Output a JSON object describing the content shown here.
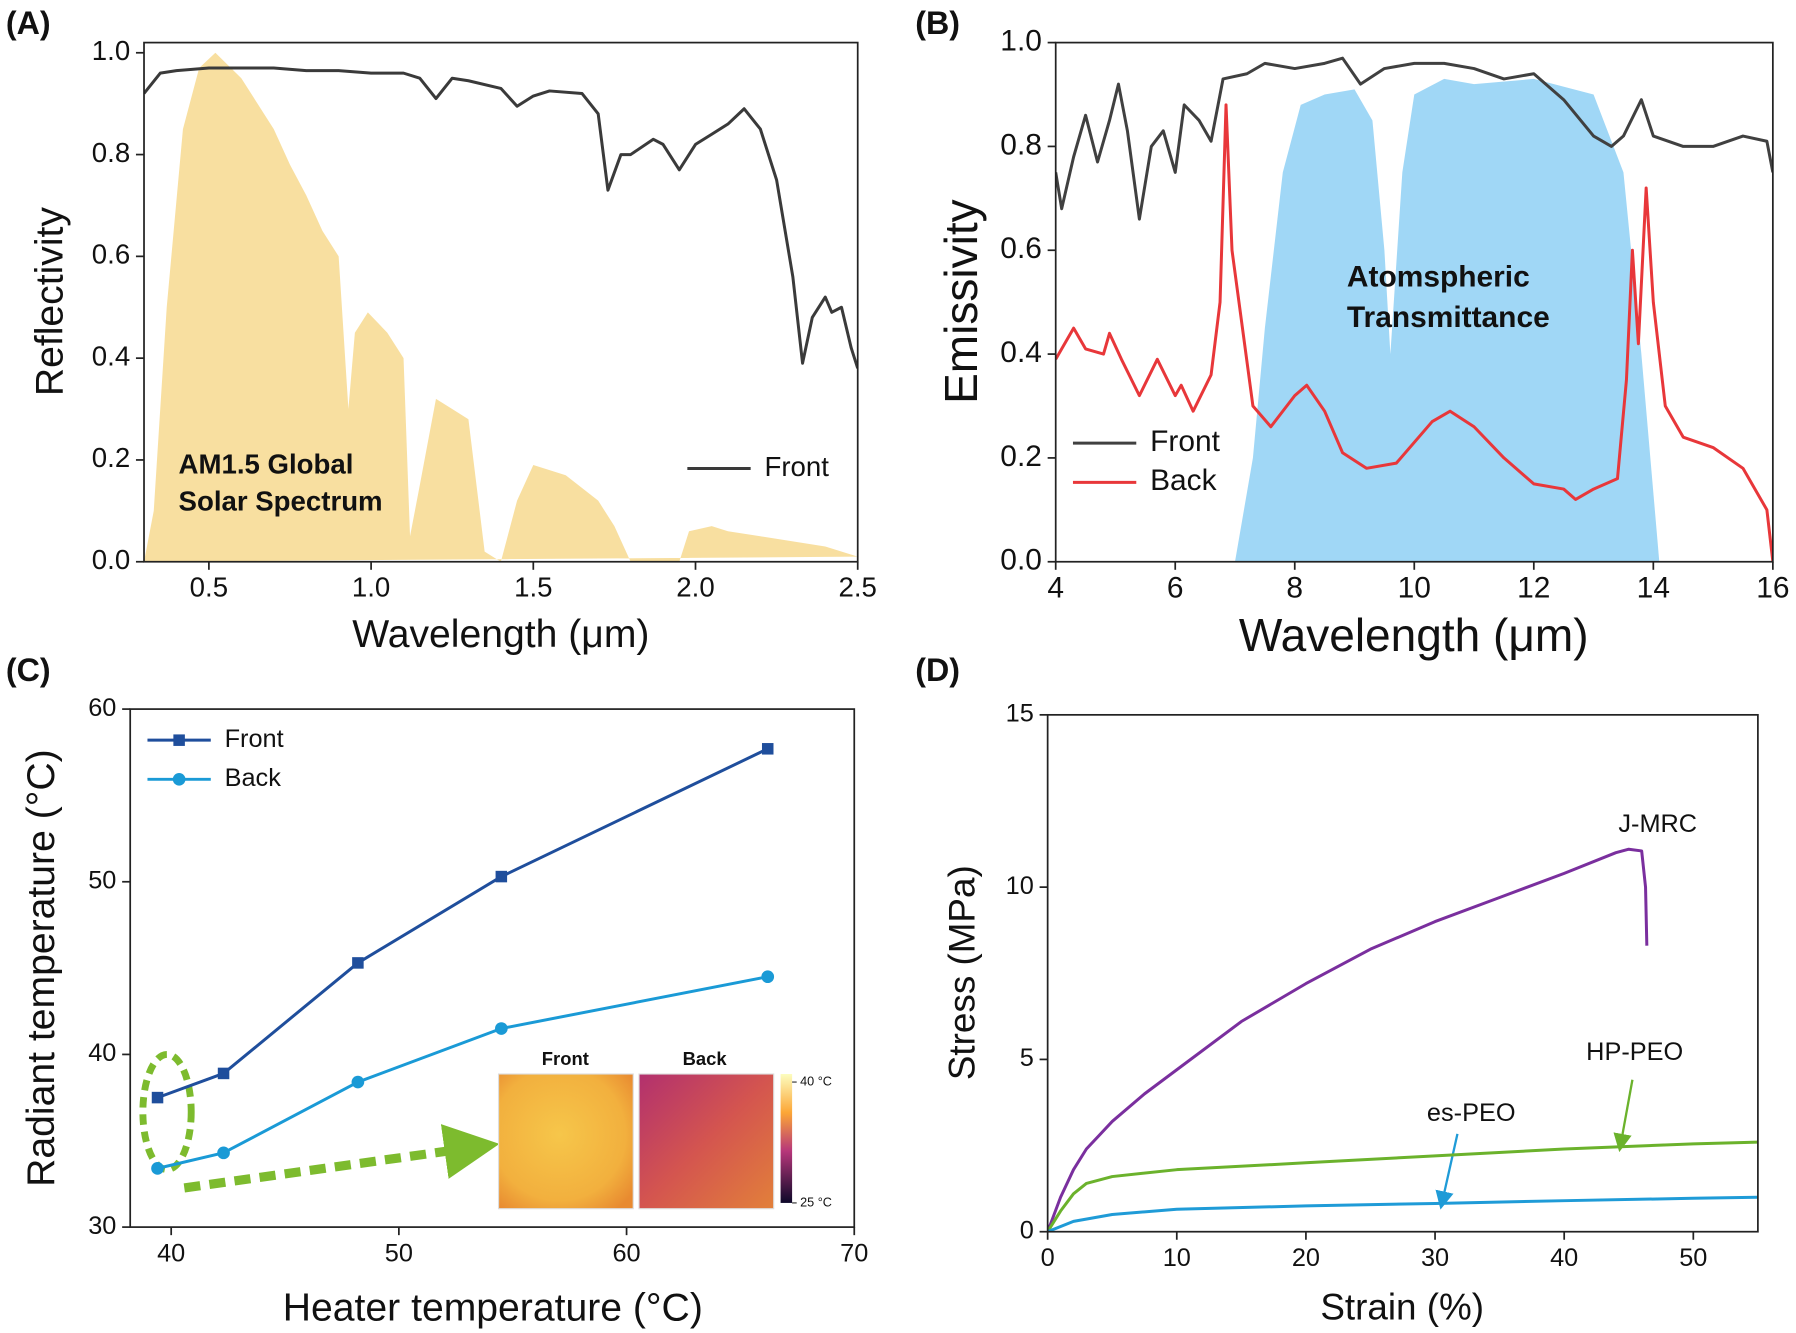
{
  "chart_data": [
    {
      "panel": "(A)",
      "type": "line",
      "xlabel": "Wavelength (μm)",
      "ylabel": "Reflectivity",
      "xlim": [
        0.3,
        2.5
      ],
      "ylim": [
        0,
        1.02
      ],
      "xticks": [
        0.5,
        {
          "value": 1.0,
          "label": "1.0"
        },
        1.5,
        {
          "value": 2.0,
          "label": "2.0"
        },
        2.5
      ],
      "yticks": [
        {
          "value": 0,
          "label": "0.0"
        },
        0.2,
        0.4,
        0.6,
        0.8,
        {
          "value": 1.0,
          "label": "1.0"
        }
      ],
      "legend": "lower right",
      "annotations": [
        "AM1.5 Global",
        "Solar Spectrum"
      ],
      "area": {
        "color": "#f7d98f",
        "x": [
          0.3,
          0.33,
          0.37,
          0.42,
          0.47,
          0.52,
          0.6,
          0.7,
          0.75,
          0.8,
          0.85,
          0.9,
          0.93,
          0.95,
          0.99,
          1.05,
          1.1,
          1.12,
          1.15,
          1.2,
          1.25,
          1.3,
          1.35,
          1.4,
          1.45,
          1.5,
          1.6,
          1.7,
          1.75,
          1.8,
          1.95,
          1.98,
          2.05,
          2.1,
          2.2,
          2.3,
          2.4,
          2.5
        ],
        "values": [
          0,
          0.1,
          0.5,
          0.85,
          0.97,
          1.0,
          0.95,
          0.85,
          0.78,
          0.72,
          0.65,
          0.6,
          0.3,
          0.45,
          0.49,
          0.45,
          0.4,
          0.05,
          0.15,
          0.32,
          0.3,
          0.28,
          0.02,
          0,
          0.12,
          0.19,
          0.17,
          0.12,
          0.07,
          0,
          0,
          0.06,
          0.07,
          0.06,
          0.05,
          0.04,
          0.03,
          0.01
        ]
      },
      "series": [
        {
          "name": "Front",
          "color": "#3a3a3a",
          "x": [
            0.3,
            0.35,
            0.4,
            0.5,
            0.6,
            0.7,
            0.8,
            0.9,
            1.0,
            1.1,
            1.15,
            1.2,
            1.25,
            1.3,
            1.4,
            1.45,
            1.5,
            1.55,
            1.65,
            1.7,
            1.73,
            1.77,
            1.8,
            1.87,
            1.9,
            1.95,
            2.0,
            2.05,
            2.1,
            2.15,
            2.2,
            2.25,
            2.3,
            2.33,
            2.36,
            2.4,
            2.42,
            2.45,
            2.48,
            2.5
          ],
          "values": [
            0.92,
            0.96,
            0.965,
            0.97,
            0.97,
            0.97,
            0.965,
            0.965,
            0.96,
            0.96,
            0.95,
            0.91,
            0.95,
            0.945,
            0.93,
            0.895,
            0.915,
            0.925,
            0.92,
            0.88,
            0.73,
            0.8,
            0.8,
            0.83,
            0.82,
            0.77,
            0.82,
            0.84,
            0.86,
            0.89,
            0.85,
            0.75,
            0.56,
            0.39,
            0.48,
            0.52,
            0.49,
            0.5,
            0.42,
            0.38
          ]
        }
      ]
    },
    {
      "panel": "(B)",
      "type": "line",
      "xlabel": "Wavelength (μm)",
      "ylabel": "Emissivity",
      "xlim": [
        4,
        16
      ],
      "ylim": [
        0,
        1.0
      ],
      "xticks": [
        4,
        6,
        8,
        10,
        12,
        14,
        16
      ],
      "yticks": [
        {
          "value": 0,
          "label": "0.0"
        },
        0.2,
        0.4,
        0.6,
        0.8,
        {
          "value": 1.0,
          "label": "1.0"
        }
      ],
      "legend": "lower left",
      "annotations": [
        "Atomspheric",
        "Transmittance"
      ],
      "area": {
        "color": "#8fd0f5",
        "x": [
          7.0,
          7.3,
          7.5,
          7.8,
          8.1,
          8.5,
          9.0,
          9.3,
          9.5,
          9.6,
          9.8,
          10.0,
          10.5,
          11.0,
          12.0,
          13.0,
          13.5,
          13.8,
          14.1
        ],
        "values": [
          0,
          0.2,
          0.45,
          0.75,
          0.88,
          0.9,
          0.91,
          0.85,
          0.6,
          0.4,
          0.75,
          0.9,
          0.93,
          0.92,
          0.93,
          0.9,
          0.75,
          0.4,
          0
        ]
      },
      "series": [
        {
          "name": "Front",
          "color": "#404040",
          "x": [
            4,
            4.1,
            4.3,
            4.5,
            4.7,
            4.9,
            5.05,
            5.2,
            5.4,
            5.6,
            5.8,
            6.0,
            6.15,
            6.4,
            6.6,
            6.8,
            7.2,
            7.5,
            8,
            8.5,
            8.8,
            9.1,
            9.5,
            10,
            10.5,
            11,
            11.5,
            12,
            12.5,
            13,
            13.3,
            13.5,
            13.8,
            14,
            14.5,
            15,
            15.5,
            15.9,
            16
          ],
          "values": [
            0.75,
            0.68,
            0.78,
            0.86,
            0.77,
            0.85,
            0.92,
            0.83,
            0.66,
            0.8,
            0.83,
            0.75,
            0.88,
            0.85,
            0.81,
            0.93,
            0.94,
            0.96,
            0.95,
            0.96,
            0.97,
            0.92,
            0.95,
            0.96,
            0.96,
            0.95,
            0.93,
            0.94,
            0.89,
            0.82,
            0.8,
            0.82,
            0.89,
            0.82,
            0.8,
            0.8,
            0.82,
            0.81,
            0.75
          ]
        },
        {
          "name": "Back",
          "color": "#e8373a",
          "x": [
            4,
            4.3,
            4.5,
            4.8,
            4.9,
            5.1,
            5.4,
            5.7,
            6,
            6.1,
            6.3,
            6.6,
            6.75,
            6.85,
            6.95,
            7.3,
            7.6,
            8,
            8.2,
            8.5,
            8.8,
            9.2,
            9.7,
            10.3,
            10.6,
            11,
            11.5,
            12,
            12.5,
            12.7,
            13,
            13.4,
            13.55,
            13.65,
            13.75,
            13.88,
            14,
            14.2,
            14.5,
            15,
            15.5,
            15.9,
            16
          ],
          "values": [
            0.39,
            0.45,
            0.41,
            0.4,
            0.44,
            0.39,
            0.32,
            0.39,
            0.32,
            0.34,
            0.29,
            0.36,
            0.5,
            0.88,
            0.6,
            0.3,
            0.26,
            0.32,
            0.34,
            0.29,
            0.21,
            0.18,
            0.19,
            0.27,
            0.29,
            0.26,
            0.2,
            0.15,
            0.14,
            0.12,
            0.14,
            0.16,
            0.35,
            0.6,
            0.42,
            0.72,
            0.5,
            0.3,
            0.24,
            0.22,
            0.18,
            0.1,
            0.0
          ]
        }
      ]
    },
    {
      "panel": "(C)",
      "type": "line",
      "xlabel": "Heater temperature (°C)",
      "ylabel": "Radiant temperature (°C)",
      "xlim": [
        38.2,
        70
      ],
      "ylim": [
        30,
        60
      ],
      "xticks": [
        40,
        50,
        60,
        70
      ],
      "yticks": [
        30,
        40,
        50,
        60
      ],
      "legend": "upper left",
      "series": [
        {
          "name": "Front",
          "color": "#1f4e9c",
          "marker": "square",
          "x": [
            39.4,
            42.3,
            48.2,
            54.5,
            66.2
          ],
          "values": [
            37.5,
            38.9,
            45.3,
            50.3,
            57.7
          ]
        },
        {
          "name": "Back",
          "color": "#1a9ad6",
          "marker": "circle",
          "x": [
            39.4,
            42.3,
            48.2,
            54.5,
            66.2
          ],
          "values": [
            33.4,
            34.3,
            38.4,
            41.5,
            44.5
          ]
        }
      ],
      "inset": {
        "labels": [
          "Front",
          "Back"
        ],
        "clim": [
          25,
          40
        ],
        "colorbar_ticks": [
          {
            "value": 40,
            "label": "40 °C"
          },
          {
            "value": 25,
            "label": "25 °C"
          }
        ]
      }
    },
    {
      "panel": "(D)",
      "type": "line",
      "xlabel": "Strain (%)",
      "ylabel": "Stress (MPa)",
      "xlim": [
        0,
        55
      ],
      "ylim": [
        0,
        15
      ],
      "xticks": [
        0,
        10,
        20,
        30,
        40,
        50
      ],
      "yticks": [
        0,
        5,
        10,
        15
      ],
      "series": [
        {
          "name": "J-MRC",
          "color": "#7a2f9e",
          "x": [
            0,
            1,
            2,
            3,
            4,
            5,
            7.5,
            10,
            15,
            20,
            25,
            30,
            35,
            40,
            44,
            45,
            46,
            46.3,
            46.4
          ],
          "values": [
            0,
            1,
            1.8,
            2.4,
            2.8,
            3.2,
            4,
            4.7,
            6.1,
            7.2,
            8.2,
            9,
            9.7,
            10.4,
            11,
            11.1,
            11.05,
            10,
            8.3
          ]
        },
        {
          "name": "HP-PEO",
          "color": "#6bb22c",
          "x": [
            0,
            1,
            2,
            3,
            5,
            10,
            20,
            30,
            40,
            50,
            55
          ],
          "values": [
            0,
            0.6,
            1.1,
            1.4,
            1.6,
            1.8,
            2.0,
            2.2,
            2.4,
            2.55,
            2.6
          ]
        },
        {
          "name": "es-PEO",
          "color": "#1f9bd7",
          "x": [
            0,
            2,
            5,
            10,
            20,
            30,
            40,
            50,
            55
          ],
          "values": [
            0,
            0.3,
            0.5,
            0.65,
            0.75,
            0.82,
            0.9,
            0.97,
            1.0
          ]
        }
      ]
    }
  ]
}
